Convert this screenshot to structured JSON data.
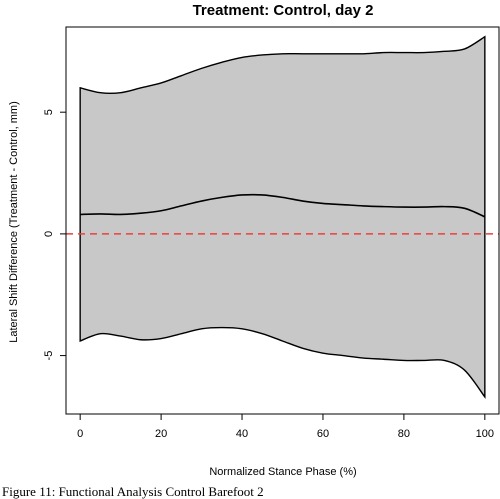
{
  "chart_data": {
    "type": "area",
    "title": "Treatment: Control, day 2",
    "xlabel": "Normalized Stance Phase (%)",
    "ylabel": "Lateral Shift Difference (Treatment - Control, mm)",
    "xlim": [
      -3.5,
      103.5
    ],
    "ylim": [
      -7.4,
      8.5
    ],
    "xticks": [
      0,
      20,
      40,
      60,
      80,
      100
    ],
    "yticks": [
      -5,
      0,
      5
    ],
    "grid": false,
    "band": {
      "x": [
        0,
        5,
        10,
        15,
        20,
        25,
        30,
        35,
        40,
        45,
        50,
        55,
        60,
        65,
        70,
        75,
        80,
        85,
        90,
        95,
        100
      ],
      "upper": [
        6.0,
        5.8,
        5.8,
        6.0,
        6.2,
        6.5,
        6.8,
        7.05,
        7.25,
        7.35,
        7.4,
        7.4,
        7.4,
        7.4,
        7.4,
        7.45,
        7.45,
        7.45,
        7.5,
        7.6,
        8.1
      ],
      "lower": [
        -4.4,
        -4.1,
        -4.2,
        -4.35,
        -4.3,
        -4.1,
        -3.9,
        -3.85,
        -3.9,
        -4.1,
        -4.4,
        -4.7,
        -4.9,
        -5.0,
        -5.1,
        -5.15,
        -5.2,
        -5.2,
        -5.2,
        -5.6,
        -6.7
      ]
    },
    "series": [
      {
        "x": [
          0,
          5,
          10,
          15,
          20,
          25,
          30,
          35,
          40,
          45,
          50,
          55,
          60,
          65,
          70,
          75,
          80,
          85,
          90,
          95,
          100
        ],
        "values": [
          0.8,
          0.82,
          0.8,
          0.85,
          0.95,
          1.15,
          1.35,
          1.5,
          1.6,
          1.6,
          1.5,
          1.35,
          1.25,
          1.2,
          1.15,
          1.12,
          1.1,
          1.1,
          1.12,
          1.05,
          0.7
        ]
      }
    ],
    "reference_line": {
      "y": 0,
      "color": "#e8413c",
      "style": "dashed"
    },
    "band_color": "#c8c8c8"
  },
  "caption": "Figure 11: Functional Analysis Control Barefoot 2"
}
